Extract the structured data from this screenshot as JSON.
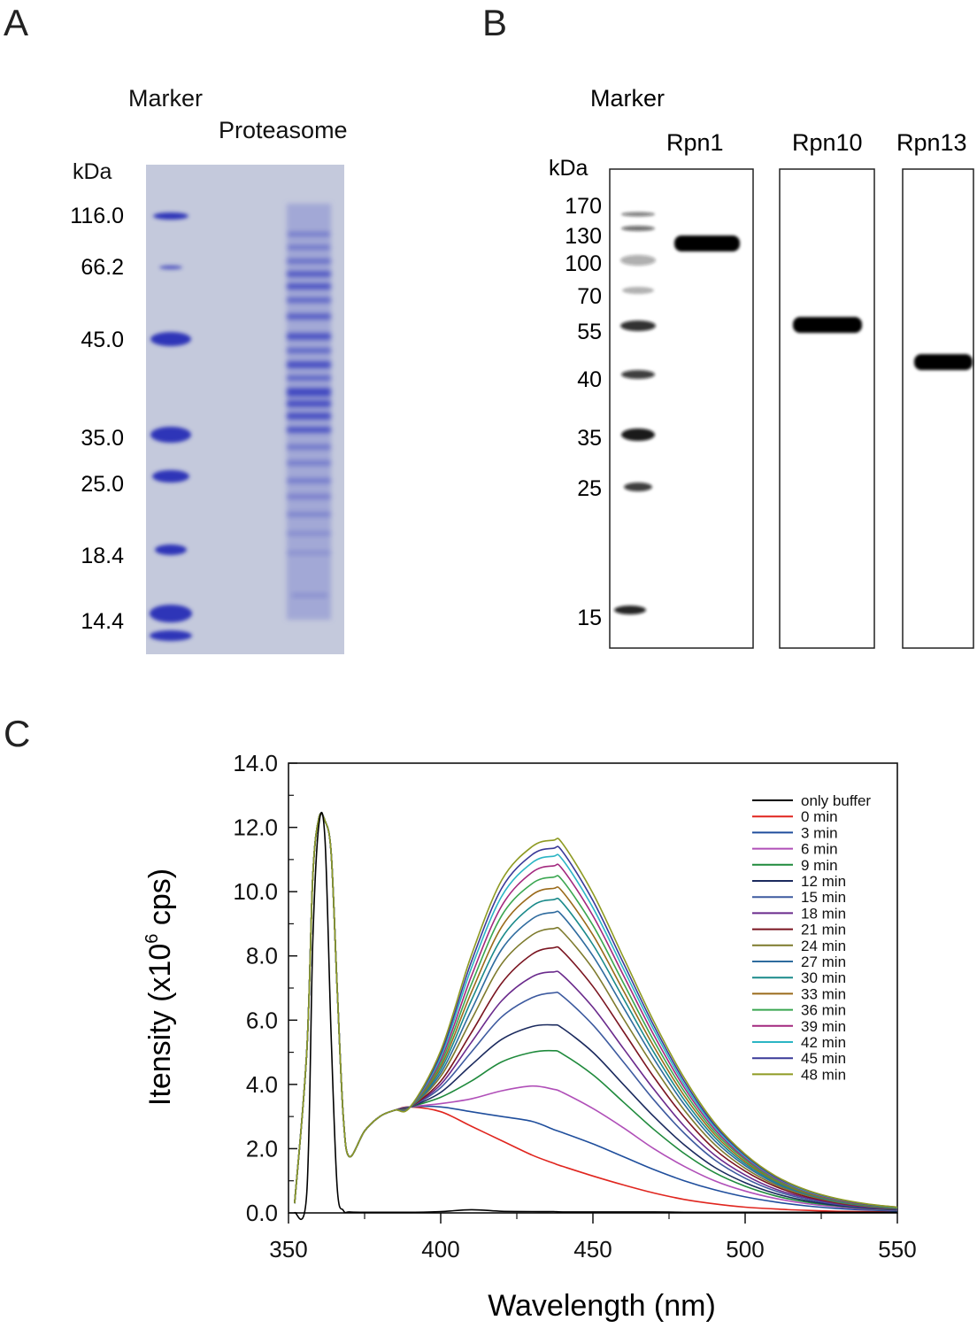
{
  "panel_a": {
    "letter": "A",
    "marker_label": "Marker",
    "sample_label": "Proteasome",
    "unit_label": "kDa",
    "ladder": [
      "116.0",
      "66.2",
      "45.0",
      "35.0",
      "25.0",
      "18.4",
      "14.4"
    ],
    "gel_color": "#c4c9dc",
    "band_color": "#2d35b8"
  },
  "panel_b": {
    "letter": "B",
    "marker_label": "Marker",
    "unit_label": "kDa",
    "ladder": [
      "170",
      "130",
      "100",
      "70",
      "55",
      "40",
      "35",
      "25",
      "15"
    ],
    "lanes": [
      "Rpn1",
      "Rpn10",
      "Rpn13"
    ]
  },
  "panel_c": {
    "letter": "C",
    "ylabel_prefix": "Itensity (x10",
    "ylabel_sup": "6",
    "ylabel_suffix": " cps)",
    "xlabel": "Wavelength  (nm)"
  },
  "chart_data": {
    "type": "line",
    "title": "",
    "xlabel": "Wavelength  (nm)",
    "ylabel": "Itensity (x10^6 cps)",
    "xlim": [
      350,
      550
    ],
    "ylim": [
      0,
      14
    ],
    "x_ticks": [
      "350",
      "400",
      "450",
      "500",
      "550"
    ],
    "y_ticks": [
      "0.0",
      "2.0",
      "4.0",
      "6.0",
      "8.0",
      "10.0",
      "12.0",
      "14.0"
    ],
    "grid": false,
    "legend_position": "top-right",
    "x": [
      352,
      356,
      358,
      360,
      362,
      364,
      366,
      368,
      370,
      375,
      380,
      385,
      390,
      400,
      410,
      420,
      430,
      437,
      440,
      450,
      460,
      470,
      480,
      490,
      500,
      510,
      520,
      530,
      540,
      550
    ],
    "series": [
      {
        "name": "only buffer",
        "color": "#000000",
        "values": [
          0.0,
          0.6,
          8.5,
          12.1,
          11.6,
          5.5,
          0.8,
          0.08,
          0.03,
          0.02,
          0.02,
          0.02,
          0.02,
          0.04,
          0.1,
          0.05,
          0.04,
          0.04,
          0.03,
          0.03,
          0.03,
          0.03,
          0.02,
          0.02,
          0.02,
          0.02,
          0.02,
          0.02,
          0.02,
          0.02
        ]
      },
      {
        "name": "0 min",
        "color": "#e0251e",
        "values": [
          0.3,
          5.0,
          10.5,
          12.3,
          12.2,
          11.2,
          7.0,
          3.0,
          1.75,
          2.55,
          3.0,
          3.2,
          3.3,
          3.15,
          2.7,
          2.25,
          1.8,
          1.55,
          1.45,
          1.15,
          0.87,
          0.62,
          0.42,
          0.28,
          0.18,
          0.12,
          0.08,
          0.05,
          0.04,
          0.03
        ]
      },
      {
        "name": "3 min",
        "color": "#1f4e9c",
        "values": [
          0.3,
          5.0,
          10.5,
          12.3,
          12.2,
          11.2,
          7.0,
          3.0,
          1.75,
          2.55,
          3.0,
          3.2,
          3.3,
          3.3,
          3.15,
          3.0,
          2.85,
          2.6,
          2.5,
          2.15,
          1.75,
          1.35,
          1.0,
          0.72,
          0.5,
          0.34,
          0.22,
          0.14,
          0.09,
          0.06
        ]
      },
      {
        "name": "6 min",
        "color": "#b04fb8",
        "values": [
          0.3,
          5.0,
          10.5,
          12.3,
          12.2,
          11.2,
          7.0,
          3.0,
          1.75,
          2.55,
          3.0,
          3.2,
          3.3,
          3.4,
          3.55,
          3.8,
          3.95,
          3.85,
          3.75,
          3.25,
          2.65,
          2.0,
          1.45,
          1.0,
          0.68,
          0.45,
          0.29,
          0.19,
          0.12,
          0.08
        ]
      },
      {
        "name": "9 min",
        "color": "#1f8a3c",
        "values": [
          0.3,
          5.0,
          10.5,
          12.3,
          12.2,
          11.2,
          7.0,
          3.0,
          1.75,
          2.55,
          3.0,
          3.2,
          3.3,
          3.6,
          4.1,
          4.7,
          5.0,
          5.05,
          4.95,
          4.3,
          3.45,
          2.6,
          1.85,
          1.25,
          0.83,
          0.53,
          0.34,
          0.22,
          0.14,
          0.09
        ]
      },
      {
        "name": "12 min",
        "color": "#1b2a5e",
        "values": [
          0.3,
          5.0,
          10.5,
          12.3,
          12.2,
          11.2,
          7.0,
          3.0,
          1.75,
          2.55,
          3.0,
          3.2,
          3.3,
          3.75,
          4.6,
          5.4,
          5.8,
          5.85,
          5.75,
          5.0,
          4.0,
          3.0,
          2.12,
          1.42,
          0.94,
          0.6,
          0.38,
          0.24,
          0.15,
          0.1
        ]
      },
      {
        "name": "15 min",
        "color": "#3d5a9f",
        "values": [
          0.3,
          5.0,
          10.5,
          12.3,
          12.2,
          11.2,
          7.0,
          3.0,
          1.75,
          2.55,
          3.0,
          3.2,
          3.3,
          3.9,
          5.0,
          6.1,
          6.7,
          6.85,
          6.75,
          5.85,
          4.7,
          3.52,
          2.48,
          1.65,
          1.08,
          0.68,
          0.43,
          0.27,
          0.17,
          0.11
        ]
      },
      {
        "name": "18 min",
        "color": "#6a2a8c",
        "values": [
          0.3,
          5.0,
          10.5,
          12.3,
          12.2,
          11.2,
          7.0,
          3.0,
          1.75,
          2.55,
          3.0,
          3.2,
          3.3,
          4.0,
          5.3,
          6.6,
          7.35,
          7.5,
          7.4,
          6.4,
          5.12,
          3.85,
          2.7,
          1.8,
          1.18,
          0.74,
          0.47,
          0.29,
          0.18,
          0.12
        ]
      },
      {
        "name": "21 min",
        "color": "#7a1420",
        "values": [
          0.3,
          5.0,
          10.5,
          12.3,
          12.2,
          11.2,
          7.0,
          3.0,
          1.75,
          2.55,
          3.0,
          3.2,
          3.3,
          4.1,
          5.6,
          7.15,
          8.05,
          8.25,
          8.15,
          7.05,
          5.65,
          4.23,
          2.98,
          1.98,
          1.3,
          0.82,
          0.51,
          0.32,
          0.2,
          0.13
        ]
      },
      {
        "name": "24 min",
        "color": "#7d7a2c",
        "values": [
          0.3,
          5.0,
          10.5,
          12.3,
          12.2,
          11.2,
          7.0,
          3.0,
          1.75,
          2.55,
          3.0,
          3.2,
          3.3,
          4.25,
          6.0,
          7.75,
          8.65,
          8.85,
          8.75,
          7.6,
          6.05,
          4.55,
          3.2,
          2.13,
          1.39,
          0.87,
          0.55,
          0.34,
          0.21,
          0.14
        ]
      },
      {
        "name": "27 min",
        "color": "#2e6b9e",
        "values": [
          0.3,
          5.0,
          10.5,
          12.3,
          12.2,
          11.2,
          7.0,
          3.0,
          1.75,
          2.55,
          3.0,
          3.2,
          3.3,
          4.35,
          6.3,
          8.2,
          9.15,
          9.35,
          9.25,
          8.0,
          6.4,
          4.8,
          3.38,
          2.25,
          1.47,
          0.92,
          0.58,
          0.36,
          0.22,
          0.15
        ]
      },
      {
        "name": "30 min",
        "color": "#1a8a8a",
        "values": [
          0.3,
          5.0,
          10.5,
          12.3,
          12.2,
          11.2,
          7.0,
          3.0,
          1.75,
          2.55,
          3.0,
          3.2,
          3.3,
          4.45,
          6.6,
          8.55,
          9.55,
          9.75,
          9.65,
          8.35,
          6.68,
          5.0,
          3.52,
          2.35,
          1.53,
          0.96,
          0.6,
          0.37,
          0.23,
          0.15
        ]
      },
      {
        "name": "33 min",
        "color": "#9a6a1a",
        "values": [
          0.3,
          5.0,
          10.5,
          12.3,
          12.2,
          11.2,
          7.0,
          3.0,
          1.75,
          2.55,
          3.0,
          3.2,
          3.3,
          4.55,
          6.85,
          8.9,
          9.9,
          10.1,
          10.0,
          8.65,
          6.92,
          5.18,
          3.65,
          2.44,
          1.59,
          1.0,
          0.62,
          0.39,
          0.24,
          0.16
        ]
      },
      {
        "name": "36 min",
        "color": "#3aa650",
        "values": [
          0.3,
          5.0,
          10.5,
          12.3,
          12.2,
          11.2,
          7.0,
          3.0,
          1.75,
          2.55,
          3.0,
          3.2,
          3.3,
          4.65,
          7.1,
          9.25,
          10.25,
          10.45,
          10.35,
          8.95,
          7.16,
          5.36,
          3.78,
          2.52,
          1.65,
          1.03,
          0.65,
          0.4,
          0.25,
          0.16
        ]
      },
      {
        "name": "39 min",
        "color": "#a3287e",
        "values": [
          0.3,
          5.0,
          10.5,
          12.3,
          12.2,
          11.2,
          7.0,
          3.0,
          1.75,
          2.55,
          3.0,
          3.2,
          3.3,
          4.75,
          7.35,
          9.55,
          10.6,
          10.8,
          10.7,
          9.25,
          7.4,
          5.54,
          3.9,
          2.6,
          1.7,
          1.07,
          0.67,
          0.41,
          0.26,
          0.17
        ]
      },
      {
        "name": "42 min",
        "color": "#2bb5c4",
        "values": [
          0.3,
          5.0,
          10.5,
          12.3,
          12.2,
          11.2,
          7.0,
          3.0,
          1.75,
          2.55,
          3.0,
          3.2,
          3.3,
          4.85,
          7.6,
          9.85,
          10.9,
          11.1,
          11.0,
          9.5,
          7.6,
          5.7,
          4.0,
          2.67,
          1.75,
          1.1,
          0.69,
          0.43,
          0.27,
          0.17
        ]
      },
      {
        "name": "45 min",
        "color": "#3a3a98",
        "values": [
          0.3,
          5.0,
          10.5,
          12.3,
          12.2,
          11.2,
          7.0,
          3.0,
          1.75,
          2.55,
          3.0,
          3.2,
          3.3,
          4.95,
          7.8,
          10.1,
          11.15,
          11.35,
          11.25,
          9.72,
          7.78,
          5.83,
          4.1,
          2.73,
          1.79,
          1.12,
          0.71,
          0.44,
          0.27,
          0.18
        ]
      },
      {
        "name": "48 min",
        "color": "#8e9a22",
        "values": [
          0.3,
          5.0,
          10.5,
          12.3,
          12.2,
          11.2,
          7.0,
          3.0,
          1.75,
          2.55,
          3.0,
          3.2,
          3.3,
          5.05,
          8.0,
          10.35,
          11.4,
          11.6,
          11.5,
          9.95,
          7.96,
          5.96,
          4.2,
          2.8,
          1.83,
          1.15,
          0.72,
          0.45,
          0.28,
          0.18
        ]
      }
    ]
  }
}
